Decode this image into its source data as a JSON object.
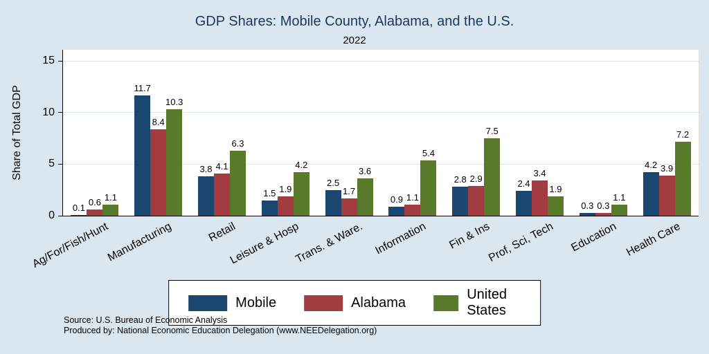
{
  "title": "GDP Shares: Mobile County, Alabama, and the U.S.",
  "subtitle": "2022",
  "ylabel": "Share of Total GDP",
  "source": {
    "line1": "Source: U.S. Bureau of Economic Analysis",
    "line2": "Produced by: National Economic Education Delegation (www.NEEDelegation.org)"
  },
  "colors": {
    "background": "#dae7f1",
    "plot_background": "#ffffff",
    "title_text": "#17375e",
    "gridline": "#d9e4ee",
    "mobile": "#1a476f",
    "alabama": "#a23c41",
    "united_states": "#5a7a2b"
  },
  "chart_data": {
    "type": "bar",
    "title": "GDP Shares: Mobile County, Alabama, and the U.S.",
    "subtitle": "2022",
    "xlabel": "",
    "ylabel": "Share of Total GDP",
    "ylim": [
      0,
      16.1
    ],
    "yticks": [
      0,
      5,
      10,
      15
    ],
    "grid": true,
    "legend_position": "bottom",
    "categories": [
      "Ag/For/Fish/Hunt",
      "Manufacturing",
      "Retail",
      "Leisure & Hosp",
      "Trans. & Ware.",
      "Information",
      "Fin & Ins",
      "Prof, Sci, Tech",
      "Education",
      "Health Care"
    ],
    "series": [
      {
        "name": "Mobile",
        "color": "#1a476f",
        "values": [
          0.1,
          11.7,
          3.8,
          1.5,
          2.5,
          0.9,
          2.8,
          2.4,
          0.3,
          4.2
        ]
      },
      {
        "name": "Alabama",
        "color": "#a23c41",
        "values": [
          0.6,
          8.4,
          4.1,
          1.9,
          1.7,
          1.1,
          2.9,
          3.4,
          0.3,
          3.9
        ]
      },
      {
        "name": "United States",
        "color": "#5a7a2b",
        "values": [
          1.1,
          10.3,
          6.3,
          4.2,
          3.6,
          5.4,
          7.5,
          1.9,
          1.1,
          7.2
        ]
      }
    ]
  }
}
